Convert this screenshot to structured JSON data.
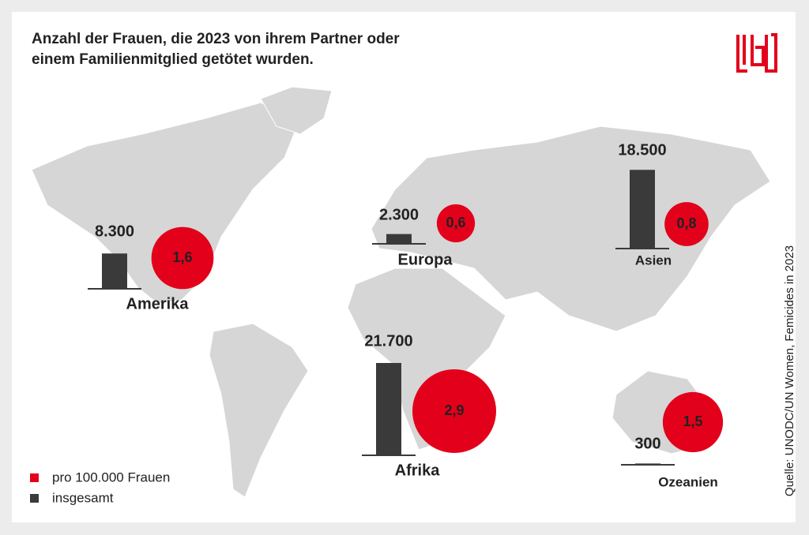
{
  "chart_data": {
    "type": "map-bubble-bar",
    "title": "Anzahl der Frauen, die 2023 von ihrem Partner oder",
    "title_line2": "einem Familienmitglied getötet wurden.",
    "source": "Quelle: UNODC/UN Women, Femicides in 2023",
    "categories": [
      "Amerika",
      "Europa",
      "Asien",
      "Afrika",
      "Ozeanien"
    ],
    "series": [
      {
        "name": "pro 100.000 Frauen",
        "color": "#e3001b",
        "values": [
          1.6,
          0.6,
          0.8,
          2.9,
          1.5
        ],
        "value_labels": [
          "1,6",
          "0,6",
          "0,8",
          "2,9",
          "1,5"
        ]
      },
      {
        "name": "insgesamt",
        "color": "#3a3a3a",
        "values": [
          8300,
          2300,
          18500,
          21700,
          300
        ],
        "value_labels": [
          "8.300",
          "2.300",
          "18.500",
          "21.700",
          "300"
        ]
      }
    ]
  }
}
